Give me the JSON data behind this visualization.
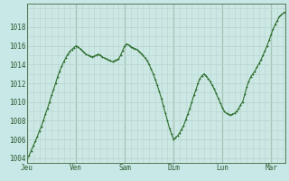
{
  "background_color": "#c8e8e8",
  "plot_bg_color": "#cce8e4",
  "line_color": "#2d6e2d",
  "marker_color": "#2d6e2d",
  "grid_color": "#b8d4d0",
  "tick_label_color": "#2d5a2d",
  "ylabel_values": [
    1004,
    1006,
    1008,
    1010,
    1012,
    1014,
    1016,
    1018
  ],
  "day_labels": [
    "Jeu",
    "Ven",
    "Sam",
    "Dim",
    "Lun",
    "Mar"
  ],
  "day_positions": [
    0,
    24,
    48,
    72,
    96,
    120
  ],
  "x_values": [
    0,
    1,
    2,
    3,
    4,
    5,
    6,
    7,
    8,
    9,
    10,
    11,
    12,
    13,
    14,
    15,
    16,
    17,
    18,
    19,
    20,
    21,
    22,
    23,
    24,
    25,
    26,
    27,
    28,
    29,
    30,
    31,
    32,
    33,
    34,
    35,
    36,
    37,
    38,
    39,
    40,
    41,
    42,
    43,
    44,
    45,
    46,
    47,
    48,
    49,
    50,
    51,
    52,
    53,
    54,
    55,
    56,
    57,
    58,
    59,
    60,
    61,
    62,
    63,
    64,
    65,
    66,
    67,
    68,
    69,
    70,
    71,
    72,
    73,
    74,
    75,
    76,
    77,
    78,
    79,
    80,
    81,
    82,
    83,
    84,
    85,
    86,
    87,
    88,
    89,
    90,
    91,
    92,
    93,
    94,
    95,
    96,
    97,
    98,
    99,
    100,
    101,
    102,
    103,
    104,
    105,
    106,
    107,
    108,
    109,
    110,
    111,
    112,
    113,
    114,
    115,
    116,
    117,
    118,
    119,
    120,
    121,
    122,
    123,
    124,
    125,
    126,
    127
  ],
  "y_values": [
    1004.0,
    1004.3,
    1004.8,
    1005.3,
    1005.8,
    1006.3,
    1006.9,
    1007.4,
    1008.0,
    1008.7,
    1009.3,
    1010.0,
    1010.7,
    1011.3,
    1012.0,
    1012.7,
    1013.3,
    1013.8,
    1014.3,
    1014.7,
    1015.1,
    1015.4,
    1015.6,
    1015.8,
    1016.0,
    1015.9,
    1015.7,
    1015.5,
    1015.3,
    1015.1,
    1015.0,
    1014.9,
    1014.8,
    1014.9,
    1015.0,
    1015.1,
    1015.0,
    1014.8,
    1014.7,
    1014.6,
    1014.5,
    1014.4,
    1014.3,
    1014.4,
    1014.5,
    1014.6,
    1015.0,
    1015.5,
    1016.0,
    1016.2,
    1016.1,
    1015.9,
    1015.8,
    1015.7,
    1015.6,
    1015.4,
    1015.2,
    1015.0,
    1014.7,
    1014.4,
    1014.0,
    1013.5,
    1013.0,
    1012.4,
    1011.8,
    1011.1,
    1010.4,
    1009.6,
    1008.8,
    1008.0,
    1007.2,
    1006.6,
    1006.0,
    1006.2,
    1006.4,
    1006.7,
    1007.1,
    1007.5,
    1008.1,
    1008.7,
    1009.3,
    1010.0,
    1010.7,
    1011.3,
    1012.0,
    1012.5,
    1012.8,
    1013.0,
    1012.8,
    1012.5,
    1012.2,
    1011.8,
    1011.4,
    1010.9,
    1010.4,
    1009.9,
    1009.4,
    1009.0,
    1008.8,
    1008.7,
    1008.6,
    1008.7,
    1008.8,
    1009.0,
    1009.3,
    1009.7,
    1010.0,
    1010.8,
    1011.6,
    1012.2,
    1012.7,
    1013.0,
    1013.3,
    1013.7,
    1014.1,
    1014.5,
    1015.0,
    1015.5,
    1016.0,
    1016.6,
    1017.2,
    1017.8,
    1018.3,
    1018.7,
    1019.1,
    1019.3,
    1019.5,
    1019.6
  ],
  "ylim": [
    1003.5,
    1020.5
  ],
  "xlim": [
    0,
    127
  ]
}
